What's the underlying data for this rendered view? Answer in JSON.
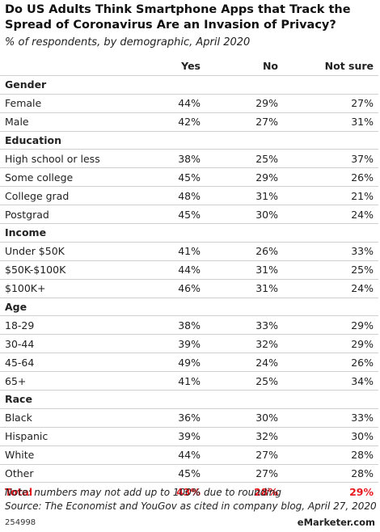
{
  "header": {
    "title": "Do US Adults Think Smartphone Apps that Track the Spread of Coronavirus Are an Invasion of Privacy?",
    "subtitle": "% of respondents, by demographic, April 2020"
  },
  "table": {
    "columns": [
      "Yes",
      "No",
      "Not sure"
    ],
    "sections": [
      {
        "name": "Gender",
        "rows": [
          [
            "Female",
            "44%",
            "29%",
            "27%"
          ],
          [
            "Male",
            "42%",
            "27%",
            "31%"
          ]
        ]
      },
      {
        "name": "Education",
        "rows": [
          [
            "High school or less",
            "38%",
            "25%",
            "37%"
          ],
          [
            "Some college",
            "45%",
            "29%",
            "26%"
          ],
          [
            "College grad",
            "48%",
            "31%",
            "21%"
          ],
          [
            "Postgrad",
            "45%",
            "30%",
            "24%"
          ]
        ]
      },
      {
        "name": "Income",
        "rows": [
          [
            "Under $50K",
            "41%",
            "26%",
            "33%"
          ],
          [
            "$50K-$100K",
            "44%",
            "31%",
            "25%"
          ],
          [
            "$100K+",
            "46%",
            "31%",
            "24%"
          ]
        ]
      },
      {
        "name": "Age",
        "rows": [
          [
            "18-29",
            "38%",
            "33%",
            "29%"
          ],
          [
            "30-44",
            "39%",
            "32%",
            "29%"
          ],
          [
            "45-64",
            "49%",
            "24%",
            "26%"
          ],
          [
            "65+",
            "41%",
            "25%",
            "34%"
          ]
        ]
      },
      {
        "name": "Race",
        "rows": [
          [
            "Black",
            "36%",
            "30%",
            "33%"
          ],
          [
            "Hispanic",
            "39%",
            "32%",
            "30%"
          ],
          [
            "White",
            "44%",
            "27%",
            "28%"
          ],
          [
            "Other",
            "45%",
            "27%",
            "28%"
          ]
        ]
      }
    ],
    "total": [
      "Total",
      "43%",
      "28%",
      "29%"
    ]
  },
  "footer": {
    "note": "Note: numbers may not add up to 100% due to rounding",
    "source": "Source: The Economist and YouGov as cited in company blog, April 27, 2020",
    "id": "254998",
    "brand": "eMarketer.com"
  }
}
